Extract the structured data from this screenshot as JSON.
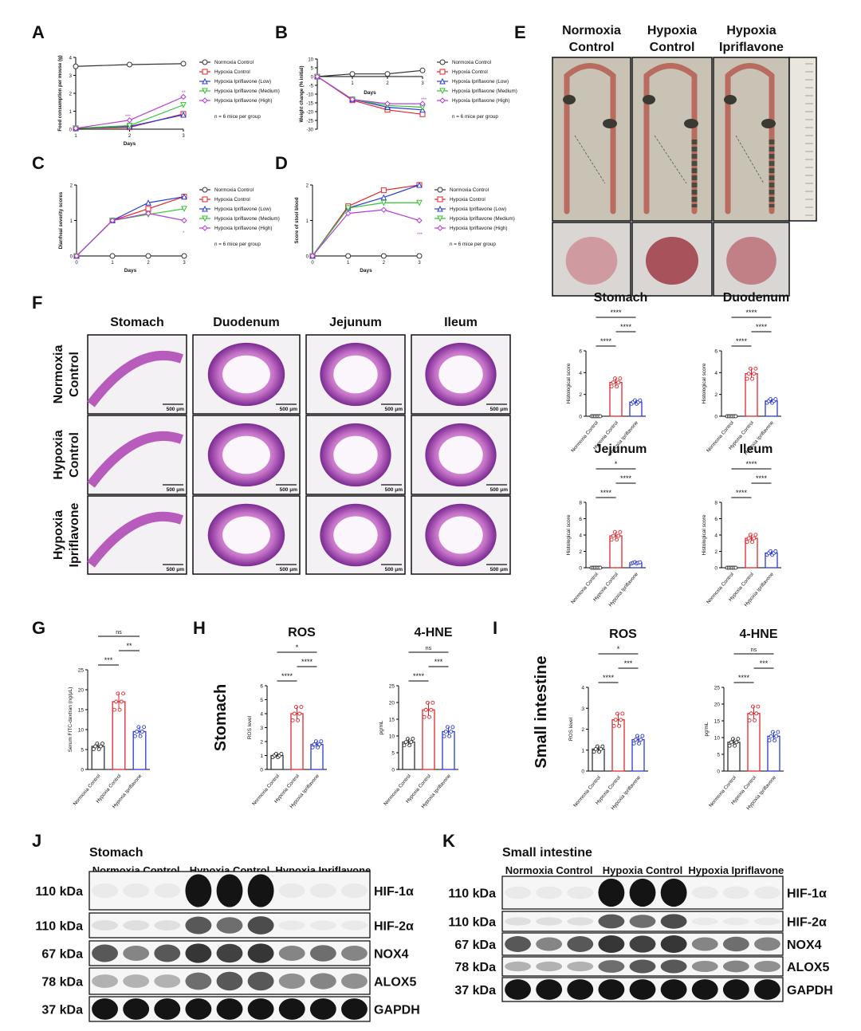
{
  "panels": {
    "A": {
      "letter": "A",
      "ylabel": "Food consumption per mouse (g)",
      "xlabel": "Days",
      "yticks": [
        "0",
        "1",
        "2",
        "3",
        "4"
      ],
      "xticks": [
        "1",
        "2",
        "3"
      ],
      "note": "n = 6 mice per group",
      "legend": [
        "Normoxia Control",
        "Hypoxia Control",
        "Hypoxia Ipriflavone (Low)",
        "Hypoxia Ipriflavone (Medium)",
        "Hypoxia Ipriflavone (High)"
      ]
    },
    "B": {
      "letter": "B",
      "ylabel": "Weight change (% initial)",
      "xlabel": "Days",
      "yticks": [
        "10",
        "5",
        "0",
        "-5",
        "-10",
        "-15",
        "-20",
        "-25",
        "-30"
      ],
      "xticks": [
        "1",
        "2",
        "3"
      ],
      "note": "n = 6 mice per group",
      "legend": [
        "Normoxia Control",
        "Hypoxia Control",
        "Hypoxia Ipriflavone (Low)",
        "Hypoxia Ipriflavone (Medium)",
        "Hypoxia Ipriflavone (High)"
      ]
    },
    "C": {
      "letter": "C",
      "ylabel": "Diarrheal severity scores",
      "xlabel": "Days",
      "yticks": [
        "0",
        "1",
        "2"
      ],
      "xticks": [
        "0",
        "1",
        "2",
        "3"
      ],
      "note": "n = 6 mice per group",
      "legend": [
        "Normoxia Control",
        "Hypoxia Control",
        "Hypoxia Ipriflavone (Low)",
        "Hypoxia Ipriflavone (Medium)",
        "Hypoxia Ipriflavone (High)"
      ]
    },
    "D": {
      "letter": "D",
      "ylabel": "Score of stool blood",
      "xlabel": "Days",
      "yticks": [
        "0",
        "1",
        "2"
      ],
      "xticks": [
        "0",
        "1",
        "2",
        "3"
      ],
      "note": "n = 6 mice per group",
      "legend": [
        "Normoxia Control",
        "Hypoxia Control",
        "Hypoxia Ipriflavone (Low)",
        "Hypoxia Ipriflavone (Medium)",
        "Hypoxia Ipriflavone (High)"
      ]
    },
    "E": {
      "letter": "E",
      "headers": [
        "Normoxia\nControl",
        "Hypoxia\nControl",
        "Hypoxia\nIpriflavone"
      ]
    },
    "F": {
      "letter": "F",
      "columns": [
        "Stomach",
        "Duodenum",
        "Jejunum",
        "Ileum"
      ],
      "rows": [
        "Normoxia\nControl",
        "Hypoxia\nControl",
        "Hypoxia\nIpriflavone"
      ],
      "scalebar": "500 μm",
      "bars": [
        {
          "title": "Stomach",
          "ylabel": "Histological score",
          "sig": [
            "****",
            "****",
            "****"
          ]
        },
        {
          "title": "Duodenum",
          "ylabel": "Histological score",
          "sig": [
            "****",
            "****",
            "****"
          ]
        },
        {
          "title": "Jejunum",
          "ylabel": "Histological score",
          "sig": [
            "*",
            "****",
            "****"
          ]
        },
        {
          "title": "Ileum",
          "ylabel": "Histological score",
          "sig": [
            "****",
            "****",
            "****"
          ]
        }
      ],
      "groups": [
        "Normoxia Control",
        "Hypoxia Control",
        "Hypoxia Ipriflavone"
      ]
    },
    "G": {
      "letter": "G",
      "ylabel": "Serum FITC-dextran (ng/μL)",
      "sig": [
        "ns",
        "**",
        "***"
      ]
    },
    "H": {
      "letter": "H",
      "side": "Stomach",
      "charts": [
        {
          "title": "ROS",
          "ylabel": "ROS level",
          "sig": [
            "*",
            "****",
            "****"
          ]
        },
        {
          "title": "4-HNE",
          "ylabel": "pg/mL",
          "sig": [
            "ns",
            "***",
            "****"
          ]
        }
      ]
    },
    "I": {
      "letter": "I",
      "side": "Small intestine",
      "charts": [
        {
          "title": "ROS",
          "ylabel": "ROS level",
          "sig": [
            "*",
            "***",
            "****"
          ]
        },
        {
          "title": "4-HNE",
          "ylabel": "pg/mL",
          "sig": [
            "ns",
            "***",
            "****"
          ]
        }
      ]
    },
    "J": {
      "letter": "J",
      "tissue": "Stomach",
      "groups": [
        "Normoxia Control",
        "Hypoxia Control",
        "Hypoxia Ipriflavone"
      ],
      "kda": [
        "110 kDa",
        "110 kDa",
        "67 kDa",
        "78 kDa",
        "37 kDa"
      ],
      "proteins": [
        "HIF-1α",
        "HIF-2α",
        "NOX4",
        "ALOX5",
        "GAPDH"
      ]
    },
    "K": {
      "letter": "K",
      "tissue": "Small intestine",
      "groups": [
        "Normoxia Control",
        "Hypoxia Control",
        "Hypoxia Ipriflavone"
      ],
      "kda": [
        "110 kDa",
        "110 kDa",
        "67 kDa",
        "78 kDa",
        "37 kDa"
      ],
      "proteins": [
        "HIF-1α",
        "HIF-2α",
        "NOX4",
        "ALOX5",
        "GAPDH"
      ]
    }
  },
  "colors": {
    "normoxia": "#333333",
    "hypoxia": "#e0262b",
    "low": "#2a3bd6",
    "medium": "#31c42f",
    "high": "#b43fd9"
  },
  "chart_data": [
    {
      "type": "line",
      "panel": "A",
      "x": [
        1,
        2,
        3
      ],
      "ylim": [
        0,
        4
      ],
      "series": [
        {
          "name": "Normoxia Control",
          "values": [
            3.5,
            3.6,
            3.65
          ]
        },
        {
          "name": "Hypoxia Control",
          "values": [
            0.05,
            0.1,
            0.85
          ]
        },
        {
          "name": "Hypoxia Ipriflavone (Low)",
          "values": [
            0.05,
            0.15,
            0.8
          ]
        },
        {
          "name": "Hypoxia Ipriflavone (Medium)",
          "values": [
            0.05,
            0.2,
            1.35
          ]
        },
        {
          "name": "Hypoxia Ipriflavone (High)",
          "values": [
            0.05,
            0.5,
            1.8
          ]
        }
      ],
      "annotations": [
        "***",
        "**"
      ]
    },
    {
      "type": "line",
      "panel": "B",
      "x": [
        0,
        1,
        2,
        3
      ],
      "ylim": [
        -30,
        10
      ],
      "series": [
        {
          "name": "Normoxia Control",
          "values": [
            0,
            1.5,
            1.5,
            3.5
          ]
        },
        {
          "name": "Hypoxia Control",
          "values": [
            0,
            -13.5,
            -19,
            -21.5
          ]
        },
        {
          "name": "Hypoxia Ipriflavone (Low)",
          "values": [
            0,
            -13,
            -17.5,
            -19
          ]
        },
        {
          "name": "Hypoxia Ipriflavone (Medium)",
          "values": [
            0,
            -13,
            -16.5,
            -17.5
          ]
        },
        {
          "name": "Hypoxia Ipriflavone (High)",
          "values": [
            0,
            -13,
            -15.5,
            -15.5
          ]
        }
      ],
      "annotations": [
        "***"
      ]
    },
    {
      "type": "line",
      "panel": "C",
      "x": [
        0,
        1,
        2,
        3
      ],
      "ylim": [
        0,
        2
      ],
      "series": [
        {
          "name": "Normoxia Control",
          "values": [
            0,
            0,
            0,
            0
          ]
        },
        {
          "name": "Hypoxia Control",
          "values": [
            0,
            1,
            1.33,
            1.67
          ]
        },
        {
          "name": "Hypoxia Ipriflavone (Low)",
          "values": [
            0,
            1,
            1.5,
            1.67
          ]
        },
        {
          "name": "Hypoxia Ipriflavone (Medium)",
          "values": [
            0,
            1,
            1.17,
            1.33
          ]
        },
        {
          "name": "Hypoxia Ipriflavone (High)",
          "values": [
            0,
            1,
            1.2,
            1.0
          ]
        }
      ],
      "annotations": [
        "*"
      ]
    },
    {
      "type": "line",
      "panel": "D",
      "x": [
        0,
        1,
        2,
        3
      ],
      "ylim": [
        0,
        2
      ],
      "series": [
        {
          "name": "Normoxia Control",
          "values": [
            0,
            0,
            0,
            0
          ]
        },
        {
          "name": "Hypoxia Control",
          "values": [
            0,
            1.4,
            1.85,
            2.0
          ]
        },
        {
          "name": "Hypoxia Ipriflavone (Low)",
          "values": [
            0,
            1.35,
            1.65,
            2.0
          ]
        },
        {
          "name": "Hypoxia Ipriflavone (Medium)",
          "values": [
            0,
            1.35,
            1.5,
            1.5
          ]
        },
        {
          "name": "Hypoxia Ipriflavone (High)",
          "values": [
            0,
            1.2,
            1.3,
            1.0
          ]
        }
      ],
      "annotations": [
        "***"
      ]
    },
    {
      "type": "bar",
      "panel": "F-Stomach",
      "categories": [
        "Normoxia Control",
        "Hypoxia Control",
        "Hypoxia Ipriflavone"
      ],
      "values": [
        0,
        3.1,
        1.3
      ],
      "ylim": [
        0,
        6
      ],
      "yticks": [
        "0",
        "2",
        "4",
        "6"
      ]
    },
    {
      "type": "bar",
      "panel": "F-Duodenum",
      "categories": [
        "Normoxia Control",
        "Hypoxia Control",
        "Hypoxia Ipriflavone"
      ],
      "values": [
        0,
        3.9,
        1.4
      ],
      "ylim": [
        0,
        6
      ],
      "yticks": [
        "0",
        "2",
        "4",
        "6"
      ]
    },
    {
      "type": "bar",
      "panel": "F-Jejunum",
      "categories": [
        "Normoxia Control",
        "Hypoxia Control",
        "Hypoxia Ipriflavone"
      ],
      "values": [
        0,
        3.9,
        0.6
      ],
      "ylim": [
        0,
        8
      ],
      "yticks": [
        "0",
        "2",
        "4",
        "6",
        "8"
      ]
    },
    {
      "type": "bar",
      "panel": "F-Ileum",
      "categories": [
        "Normoxia Control",
        "Hypoxia Control",
        "Hypoxia Ipriflavone"
      ],
      "values": [
        0,
        3.6,
        1.8
      ],
      "ylim": [
        0,
        8
      ],
      "yticks": [
        "0",
        "2",
        "4",
        "6",
        "8"
      ]
    },
    {
      "type": "bar",
      "panel": "G",
      "categories": [
        "Normoxia Control",
        "Hypoxia Control",
        "Hypoxia Ipriflavone"
      ],
      "values": [
        5.8,
        17,
        9.5
      ],
      "ylim": [
        0,
        25
      ],
      "yticks": [
        "0",
        "5",
        "10",
        "15",
        "20",
        "25"
      ]
    },
    {
      "type": "bar",
      "panel": "H-ROS",
      "categories": [
        "Normoxia Control",
        "Hypoxia Control",
        "Hypoxia Ipriflavone"
      ],
      "values": [
        1.0,
        4.0,
        1.8
      ],
      "ylim": [
        0,
        6
      ],
      "yticks": [
        "0",
        "1",
        "2",
        "3",
        "4",
        "5",
        "6"
      ]
    },
    {
      "type": "bar",
      "panel": "H-4-HNE",
      "categories": [
        "Normoxia Control",
        "Hypoxia Control",
        "Hypoxia Ipriflavone"
      ],
      "values": [
        8.2,
        17.8,
        11.3
      ],
      "ylim": [
        0,
        25
      ],
      "yticks": [
        "0",
        "5",
        "10",
        "15",
        "20",
        "25"
      ]
    },
    {
      "type": "bar",
      "panel": "I-ROS",
      "categories": [
        "Normoxia Control",
        "Hypoxia Control",
        "Hypoxia Ipriflavone"
      ],
      "values": [
        1.05,
        2.45,
        1.5
      ],
      "ylim": [
        0,
        4
      ],
      "yticks": [
        "0",
        "1",
        "2",
        "3",
        "4"
      ]
    },
    {
      "type": "bar",
      "panel": "I-4-HNE",
      "categories": [
        "Normoxia Control",
        "Hypoxia Control",
        "Hypoxia Ipriflavone"
      ],
      "values": [
        8.6,
        17.2,
        10.4
      ],
      "ylim": [
        0,
        25
      ],
      "yticks": [
        "0",
        "5",
        "10",
        "15",
        "20",
        "25"
      ]
    }
  ]
}
